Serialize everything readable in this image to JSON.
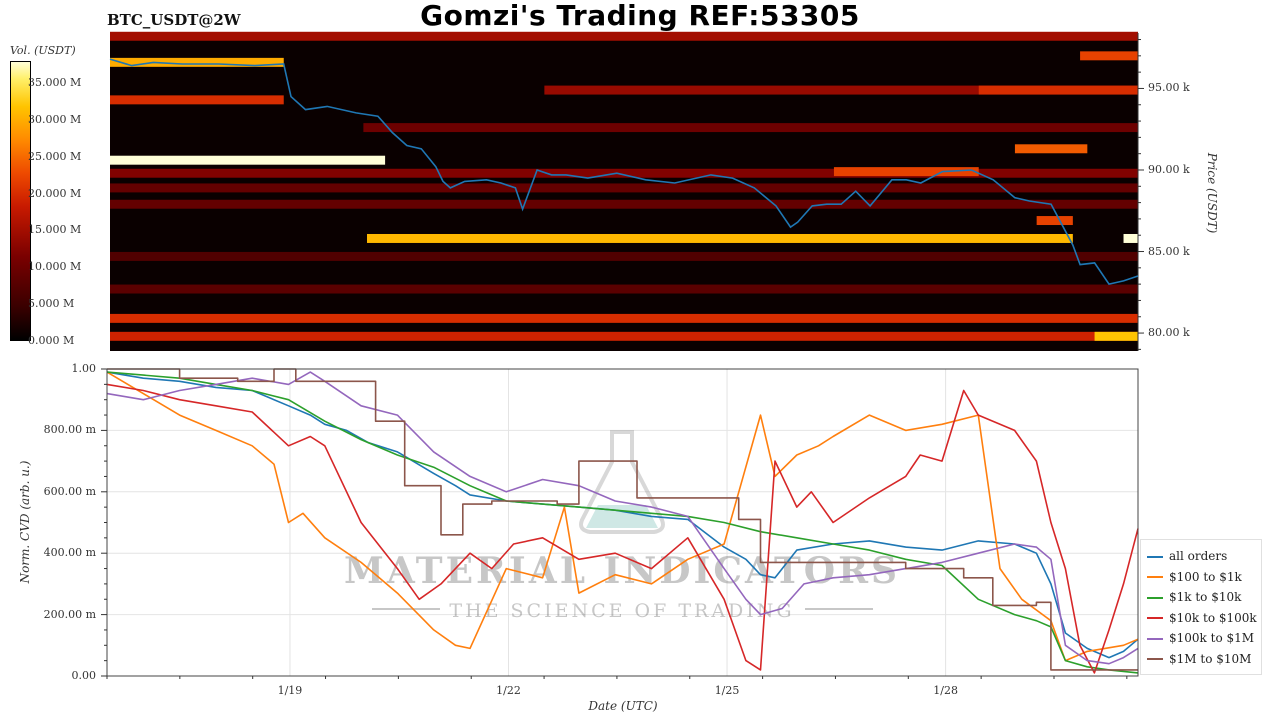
{
  "title": "Gomzi's Trading REF:53305",
  "ticker": "BTC_USDT@2W",
  "watermark": {
    "line1": "MATERIAL INDICATORS",
    "line2": "THE SCIENCE OF TRADING"
  },
  "colors": {
    "price_line": "#1f77b4",
    "all_orders": "#1f77b4",
    "s100_1k": "#ff7f0e",
    "s1k_10k": "#2ca02c",
    "s10k_100k": "#d62728",
    "s100k_1m": "#9467bd",
    "s1m_10m": "#8c564b"
  },
  "chart_data": [
    {
      "type": "heatmap",
      "colorbar": {
        "label": "Vol. (USDT)",
        "ticks": [
          "0.000 M",
          "5.000 M",
          "10.000 M",
          "15.000 M",
          "20.000 M",
          "25.000 M",
          "30.000 M",
          "35.000 M"
        ],
        "tick_values": [
          0,
          5,
          10,
          15,
          20,
          25,
          30,
          35
        ],
        "range": [
          0,
          38
        ]
      },
      "ylabel": "Price (USDT)",
      "yticks": [
        "80.00 k",
        "85.00 k",
        "90.00 k",
        "95.00 k"
      ],
      "ytick_values": [
        80,
        85,
        90,
        95
      ],
      "ylim": [
        78.9,
        98.4
      ],
      "xlim": [
        0,
        14.2
      ],
      "price_series": {
        "x": [
          0,
          0.3,
          0.6,
          1.0,
          1.5,
          2.0,
          2.4,
          2.5,
          2.7,
          3.0,
          3.4,
          3.7,
          3.9,
          4.1,
          4.3,
          4.5,
          4.6,
          4.7,
          4.9,
          5.2,
          5.4,
          5.6,
          5.7,
          5.9,
          6.1,
          6.3,
          6.6,
          7.0,
          7.4,
          7.8,
          8.3,
          8.6,
          8.9,
          9.2,
          9.4,
          9.5,
          9.7,
          9.9,
          10.1,
          10.3,
          10.5,
          10.8,
          11.0,
          11.2,
          11.5,
          11.9,
          12.2,
          12.5,
          12.7,
          13.0,
          13.3,
          13.4,
          13.6,
          13.8,
          14.0,
          14.2
        ],
        "y": [
          96.8,
          96.4,
          96.6,
          96.5,
          96.5,
          96.4,
          96.5,
          94.5,
          93.7,
          93.9,
          93.5,
          93.3,
          92.3,
          91.5,
          91.3,
          90.2,
          89.3,
          88.9,
          89.3,
          89.4,
          89.2,
          88.9,
          87.6,
          90.0,
          89.7,
          89.7,
          89.5,
          89.8,
          89.4,
          89.2,
          89.7,
          89.5,
          88.9,
          87.8,
          86.5,
          86.8,
          87.8,
          87.9,
          87.9,
          88.7,
          87.8,
          89.4,
          89.4,
          89.2,
          89.9,
          90.0,
          89.4,
          88.3,
          88.1,
          87.9,
          85.4,
          84.2,
          84.3,
          83.0,
          83.2,
          83.5
        ]
      },
      "liquidity_bands": [
        {
          "price": 98.2,
          "x_start": 0,
          "x_end": 14.2,
          "volume": 15
        },
        {
          "price": 97.0,
          "x_start": 13.4,
          "x_end": 14.2,
          "volume": 22
        },
        {
          "price": 96.6,
          "x_start": 0,
          "x_end": 2.4,
          "volume": 30
        },
        {
          "price": 94.9,
          "x_start": 6.0,
          "x_end": 14.2,
          "volume": 14
        },
        {
          "price": 94.9,
          "x_start": 12.0,
          "x_end": 14.2,
          "volume": 20
        },
        {
          "price": 94.3,
          "x_start": 0,
          "x_end": 2.4,
          "volume": 20
        },
        {
          "price": 92.6,
          "x_start": 3.5,
          "x_end": 14.2,
          "volume": 10
        },
        {
          "price": 91.3,
          "x_start": 12.5,
          "x_end": 13.5,
          "volume": 24
        },
        {
          "price": 90.6,
          "x_start": 0,
          "x_end": 3.8,
          "volume": 38
        },
        {
          "price": 89.8,
          "x_start": 0,
          "x_end": 14.2,
          "volume": 12
        },
        {
          "price": 89.9,
          "x_start": 10.0,
          "x_end": 12.0,
          "volume": 22
        },
        {
          "price": 88.9,
          "x_start": 0,
          "x_end": 14.2,
          "volume": 9
        },
        {
          "price": 87.9,
          "x_start": 0,
          "x_end": 14.2,
          "volume": 9
        },
        {
          "price": 86.9,
          "x_start": 12.8,
          "x_end": 13.3,
          "volume": 22
        },
        {
          "price": 85.8,
          "x_start": 3.55,
          "x_end": 13.3,
          "volume": 31
        },
        {
          "price": 85.8,
          "x_start": 14.0,
          "x_end": 14.2,
          "volume": 38
        },
        {
          "price": 84.7,
          "x_start": 0,
          "x_end": 14.2,
          "volume": 7
        },
        {
          "price": 82.7,
          "x_start": 0,
          "x_end": 14.2,
          "volume": 8
        },
        {
          "price": 80.9,
          "x_start": 0,
          "x_end": 14.2,
          "volume": 20
        },
        {
          "price": 79.8,
          "x_start": 0,
          "x_end": 14.2,
          "volume": 19
        },
        {
          "price": 79.8,
          "x_start": 13.6,
          "x_end": 14.2,
          "volume": 32
        }
      ]
    },
    {
      "type": "line",
      "xlabel": "Date (UTC)",
      "ylabel": "Norm. CVD (arb. u.)",
      "xticks": [
        "1/19",
        "1/22",
        "1/25",
        "1/28"
      ],
      "xtick_values": [
        2.52,
        5.53,
        8.54,
        11.55
      ],
      "yticks": [
        "0.00",
        "200.00 m",
        "400.00 m",
        "600.00 m",
        "800.00 m",
        "1.00"
      ],
      "ytick_values": [
        0,
        0.2,
        0.4,
        0.6,
        0.8,
        1.0
      ],
      "xlim": [
        0,
        14.2
      ],
      "ylim": [
        0,
        1.0
      ],
      "grid": true,
      "legend_position": "right",
      "series": [
        {
          "name": "all orders",
          "color": "#1f77b4",
          "step": false,
          "x": [
            0,
            0.5,
            1.0,
            1.5,
            2.0,
            2.5,
            2.8,
            3.0,
            3.3,
            3.6,
            4.0,
            4.5,
            4.8,
            5.0,
            5.5,
            6.0,
            6.5,
            7.0,
            7.5,
            8.0,
            8.5,
            8.8,
            9.0,
            9.2,
            9.5,
            10.0,
            10.5,
            11.0,
            11.5,
            12.0,
            12.5,
            12.8,
            13.0,
            13.2,
            13.5,
            13.8,
            14.0,
            14.2
          ],
          "y": [
            0.99,
            0.97,
            0.96,
            0.94,
            0.93,
            0.88,
            0.85,
            0.82,
            0.8,
            0.76,
            0.73,
            0.66,
            0.62,
            0.59,
            0.57,
            0.56,
            0.55,
            0.54,
            0.52,
            0.51,
            0.42,
            0.38,
            0.33,
            0.32,
            0.41,
            0.43,
            0.44,
            0.42,
            0.41,
            0.44,
            0.43,
            0.4,
            0.3,
            0.14,
            0.09,
            0.06,
            0.08,
            0.12
          ]
        },
        {
          "name": "$100 to $1k",
          "color": "#ff7f0e",
          "step": false,
          "x": [
            0,
            0.5,
            1.0,
            1.5,
            2.0,
            2.3,
            2.5,
            2.7,
            3.0,
            3.5,
            4.0,
            4.5,
            4.8,
            5.0,
            5.5,
            6.0,
            6.3,
            6.5,
            7.0,
            7.5,
            8.0,
            8.5,
            9.0,
            9.2,
            9.5,
            9.8,
            10.0,
            10.5,
            11.0,
            11.5,
            12.0,
            12.3,
            12.6,
            13.0,
            13.2,
            13.5,
            14.0,
            14.2
          ],
          "y": [
            0.99,
            0.92,
            0.85,
            0.8,
            0.75,
            0.69,
            0.5,
            0.53,
            0.45,
            0.37,
            0.27,
            0.15,
            0.1,
            0.09,
            0.35,
            0.32,
            0.55,
            0.27,
            0.33,
            0.3,
            0.38,
            0.43,
            0.85,
            0.65,
            0.72,
            0.75,
            0.78,
            0.85,
            0.8,
            0.82,
            0.85,
            0.35,
            0.25,
            0.18,
            0.05,
            0.08,
            0.1,
            0.12
          ]
        },
        {
          "name": "$1k to $10k",
          "color": "#2ca02c",
          "step": false,
          "x": [
            0,
            0.5,
            1.0,
            1.5,
            2.0,
            2.5,
            3.0,
            3.5,
            4.0,
            4.5,
            5.0,
            5.5,
            6.0,
            6.5,
            7.0,
            7.5,
            8.0,
            8.5,
            9.0,
            9.5,
            10.0,
            10.5,
            11.0,
            11.5,
            12.0,
            12.5,
            12.8,
            13.0,
            13.2,
            13.5,
            13.8,
            14.0,
            14.2
          ],
          "y": [
            0.99,
            0.98,
            0.97,
            0.95,
            0.93,
            0.9,
            0.83,
            0.77,
            0.72,
            0.68,
            0.62,
            0.57,
            0.56,
            0.55,
            0.54,
            0.53,
            0.52,
            0.5,
            0.47,
            0.45,
            0.43,
            0.41,
            0.38,
            0.36,
            0.25,
            0.2,
            0.18,
            0.16,
            0.05,
            0.03,
            0.02,
            0.015,
            0.01
          ]
        },
        {
          "name": "$10k to $100k",
          "color": "#d62728",
          "step": false,
          "x": [
            0,
            0.5,
            1.0,
            1.5,
            2.0,
            2.5,
            2.8,
            3.0,
            3.5,
            4.0,
            4.3,
            4.6,
            5.0,
            5.3,
            5.6,
            6.0,
            6.5,
            7.0,
            7.5,
            8.0,
            8.5,
            8.8,
            9.0,
            9.2,
            9.5,
            9.7,
            10.0,
            10.5,
            11.0,
            11.2,
            11.5,
            11.8,
            12.0,
            12.5,
            12.8,
            13.0,
            13.2,
            13.4,
            13.6,
            13.8,
            14.0,
            14.2
          ],
          "y": [
            0.95,
            0.93,
            0.9,
            0.88,
            0.86,
            0.75,
            0.78,
            0.75,
            0.5,
            0.35,
            0.25,
            0.3,
            0.4,
            0.35,
            0.43,
            0.45,
            0.38,
            0.4,
            0.35,
            0.45,
            0.25,
            0.05,
            0.02,
            0.7,
            0.55,
            0.6,
            0.5,
            0.58,
            0.65,
            0.72,
            0.7,
            0.93,
            0.85,
            0.8,
            0.7,
            0.5,
            0.35,
            0.1,
            0.01,
            0.15,
            0.3,
            0.48
          ]
        },
        {
          "name": "$100k to $1M",
          "color": "#9467bd",
          "step": false,
          "x": [
            0,
            0.5,
            1.0,
            1.5,
            2.0,
            2.5,
            2.8,
            3.0,
            3.5,
            4.0,
            4.5,
            5.0,
            5.5,
            6.0,
            6.5,
            7.0,
            7.5,
            8.0,
            8.5,
            8.8,
            9.0,
            9.3,
            9.6,
            10.0,
            10.5,
            11.0,
            11.5,
            12.0,
            12.5,
            12.8,
            13.0,
            13.2,
            13.5,
            13.8,
            14.0,
            14.2
          ],
          "y": [
            0.92,
            0.9,
            0.93,
            0.95,
            0.97,
            0.95,
            0.99,
            0.96,
            0.88,
            0.85,
            0.73,
            0.65,
            0.6,
            0.64,
            0.62,
            0.57,
            0.55,
            0.52,
            0.35,
            0.25,
            0.2,
            0.22,
            0.3,
            0.32,
            0.33,
            0.35,
            0.37,
            0.4,
            0.43,
            0.42,
            0.38,
            0.1,
            0.05,
            0.04,
            0.06,
            0.09
          ]
        },
        {
          "name": "$1M to $10M",
          "color": "#8c564b",
          "step": true,
          "x": [
            0,
            1.0,
            1.8,
            2.3,
            2.6,
            3.2,
            3.7,
            4.1,
            4.6,
            4.9,
            5.3,
            6.2,
            6.5,
            7.3,
            8.7,
            9.0,
            11.0,
            11.8,
            12.2,
            12.8,
            13.0,
            13.4,
            14.2
          ],
          "y": [
            1.0,
            0.97,
            0.96,
            1.0,
            0.96,
            0.96,
            0.83,
            0.62,
            0.46,
            0.56,
            0.57,
            0.56,
            0.7,
            0.58,
            0.51,
            0.37,
            0.35,
            0.32,
            0.23,
            0.24,
            0.02,
            0.02,
            0.02
          ]
        }
      ]
    }
  ]
}
